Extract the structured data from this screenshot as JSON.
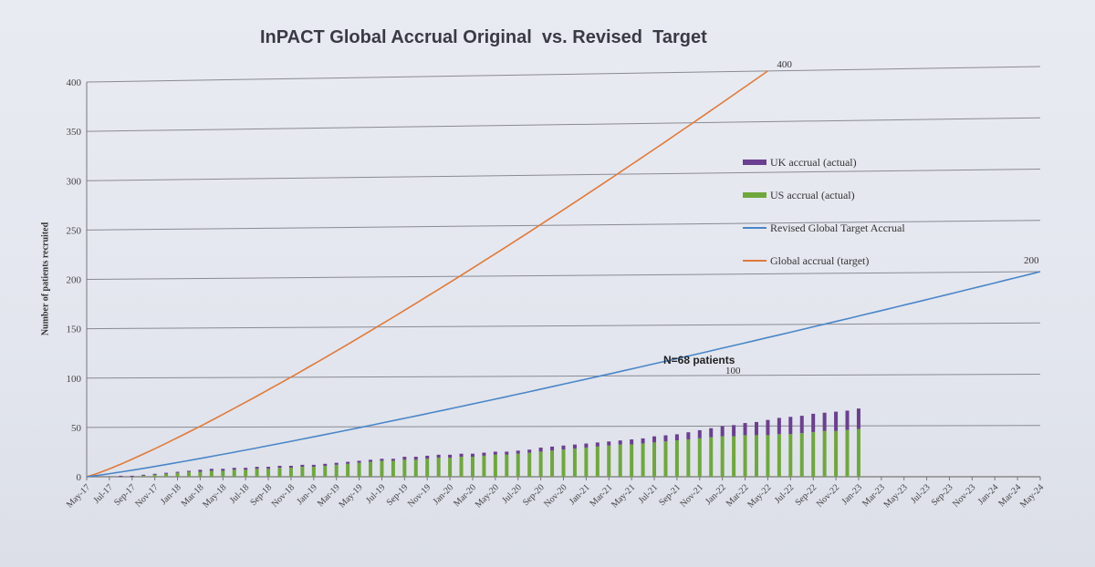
{
  "chart_data": {
    "type": "bar",
    "title": "InPACT Global Accrual Original  vs. Revised  Target",
    "xlabel": "",
    "ylabel": "Number of patients recruited",
    "ylim": [
      0,
      400
    ],
    "yticks": [
      0,
      50,
      100,
      150,
      200,
      250,
      300,
      350,
      400
    ],
    "grid": true,
    "legend_position": "right",
    "x_labels": [
      "May-17",
      "Jul-17",
      "Sep-17",
      "Nov-17",
      "Jan-18",
      "Mar-18",
      "May-18",
      "Jul-18",
      "Sep-18",
      "Nov-18",
      "Jan-19",
      "Mar-19",
      "May-19",
      "Jul-19",
      "Sep-19",
      "Nov-19",
      "Jan-20",
      "Mar-20",
      "May-20",
      "Jul-20",
      "Sep-20",
      "Nov-20",
      "Jan-21",
      "Mar-21",
      "May-21",
      "Jul-21",
      "Sep-21",
      "Nov-21",
      "Jan-22",
      "Mar-22",
      "May-22",
      "Jul-22",
      "Sep-22",
      "Nov-22",
      "Jan-23",
      "Mar-23",
      "May-23",
      "Jul-23",
      "Sep-23",
      "Nov-23",
      "Jan-24",
      "Mar-24",
      "May-24"
    ],
    "x_month_count": 85,
    "series": [
      {
        "name": "UK accrual (actual)",
        "kind": "bar-stack-top",
        "color": "#6b3f8f",
        "start_month_index": 3,
        "values": [
          1,
          1,
          1,
          1,
          1,
          1,
          1,
          2,
          2,
          2,
          2,
          2,
          2,
          2,
          2,
          2,
          2,
          2,
          2,
          2,
          2,
          2,
          2,
          2,
          2,
          3,
          3,
          3,
          3,
          3,
          3,
          3,
          3,
          3,
          3,
          3,
          3,
          4,
          4,
          4,
          4,
          4,
          4,
          4,
          4,
          5,
          5,
          6,
          6,
          6,
          7,
          8,
          9,
          10,
          11,
          12,
          13,
          15,
          16,
          17,
          17,
          18,
          18,
          19,
          19,
          20
        ]
      },
      {
        "name": "US accrual (actual)",
        "kind": "bar-stack-bottom",
        "color": "#6fa83a",
        "start_month_index": 3,
        "values": [
          0,
          0,
          1,
          2,
          3,
          4,
          5,
          5,
          6,
          6,
          7,
          7,
          8,
          8,
          9,
          9,
          10,
          10,
          11,
          12,
          13,
          14,
          15,
          16,
          16,
          17,
          17,
          18,
          19,
          19,
          20,
          20,
          21,
          22,
          22,
          23,
          24,
          25,
          26,
          27,
          28,
          29,
          30,
          31,
          32,
          32,
          33,
          34,
          35,
          36,
          37,
          38,
          39,
          40,
          40,
          41,
          41,
          41,
          42,
          42,
          43,
          44,
          45,
          45,
          46,
          47
        ]
      },
      {
        "name": "Revised Global Target Accrual",
        "kind": "line",
        "color": "#4a86c8",
        "x_month_index": [
          0,
          84
        ],
        "values": [
          0,
          200
        ],
        "shape_power": 1.12
      },
      {
        "name": "Global accrual (target)",
        "kind": "line",
        "color": "#e07a3a",
        "x_month_index": [
          0,
          60
        ],
        "values": [
          0,
          400
        ],
        "shape_power": 1.15
      }
    ],
    "annotations": [
      {
        "text": "N=68 patients"
      },
      {
        "text": "400"
      },
      {
        "text": "200"
      },
      {
        "text": "100"
      }
    ]
  }
}
